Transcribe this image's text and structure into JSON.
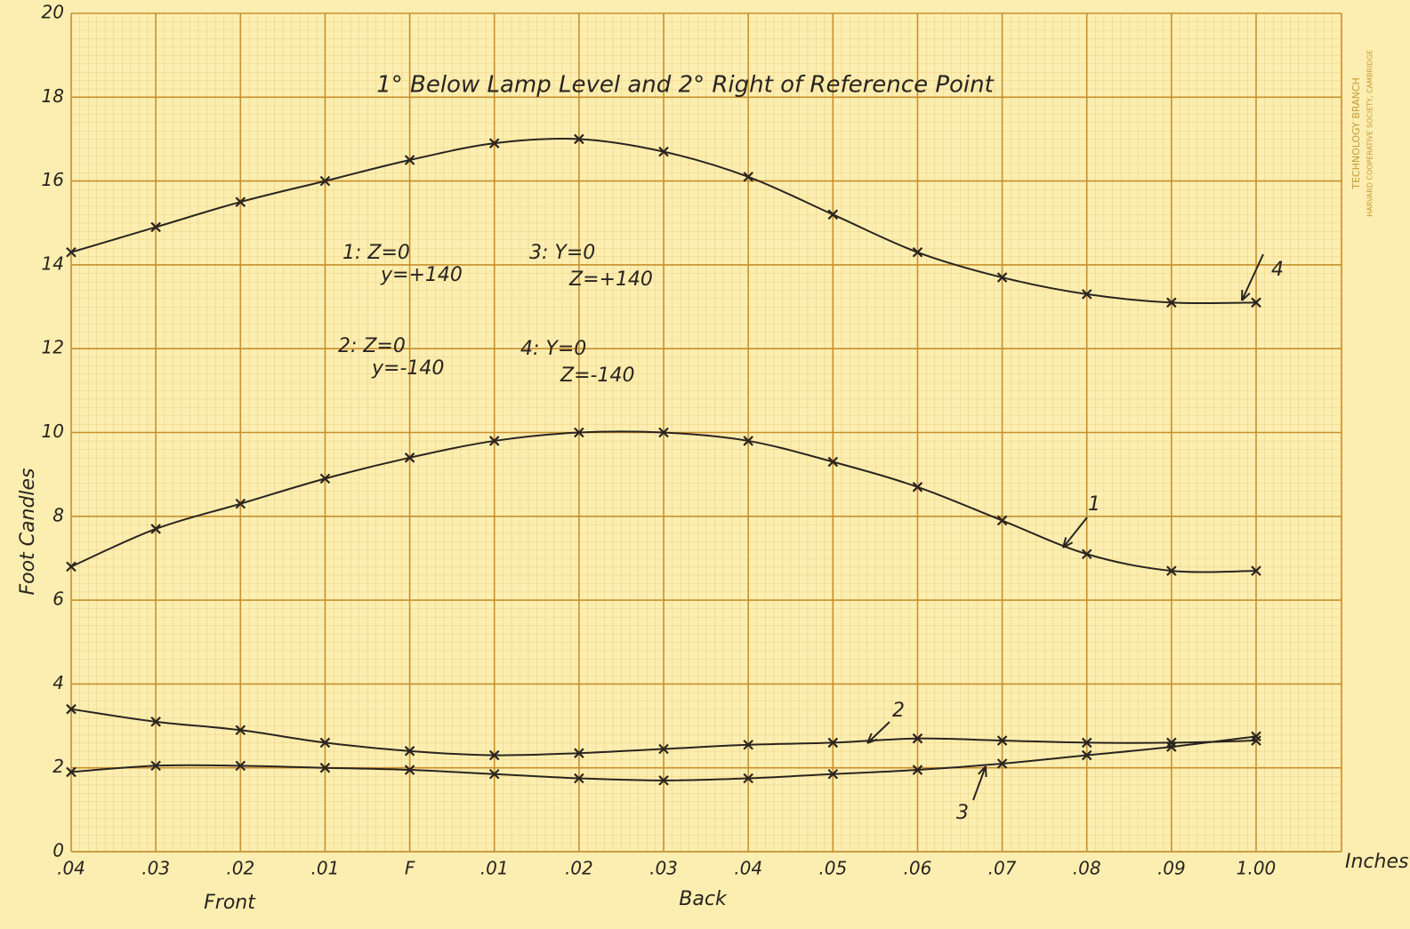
{
  "chart_data": {
    "type": "line",
    "title": "1° Below Lamp Level and 2° Right of Reference Point",
    "y_label": "Foot Candles",
    "x_labels": [
      "Front",
      "Back",
      "Inches"
    ],
    "categories": [
      ".04",
      ".03",
      ".02",
      ".01",
      "F",
      ".01",
      ".02",
      ".03",
      ".04",
      ".05",
      ".06",
      ".07",
      ".08",
      ".09",
      "1.00"
    ],
    "series": [
      {
        "name": "1",
        "color": "#2a2420",
        "values": [
          6.8,
          7.7,
          8.3,
          8.9,
          9.4,
          9.8,
          10.0,
          10.0,
          9.8,
          9.3,
          8.7,
          7.9,
          7.1,
          6.7,
          6.7
        ]
      },
      {
        "name": "2",
        "color": "#2a2420",
        "values": [
          3.4,
          3.1,
          2.9,
          2.6,
          2.4,
          2.3,
          2.35,
          2.45,
          2.55,
          2.6,
          2.7,
          2.65,
          2.6,
          2.6,
          2.65
        ]
      },
      {
        "name": "3",
        "color": "#2a2420",
        "values": [
          1.9,
          2.05,
          2.05,
          2.0,
          1.95,
          1.85,
          1.75,
          1.7,
          1.75,
          1.85,
          1.95,
          2.1,
          2.3,
          2.5,
          2.75
        ]
      },
      {
        "name": "4",
        "color": "#2a2420",
        "values": [
          14.3,
          14.9,
          15.5,
          16.0,
          16.5,
          16.9,
          17.0,
          16.7,
          16.1,
          15.2,
          14.3,
          13.7,
          13.3,
          13.1,
          13.1
        ]
      }
    ],
    "annotations": [
      "1: Z=0",
      "y=+140",
      "2: Z=0",
      "y=-140",
      "3: Y=0",
      "Z=+140",
      "4: Y=0",
      "Z=-140"
    ],
    "stamp": [
      "TECHNOLOGY BRANCH",
      "HARVARD COOPERATIVE SOCIETY, CAMBRIDGE"
    ],
    "ylim": [
      0,
      20
    ],
    "yticks": [
      0,
      2,
      4,
      6,
      8,
      10,
      12,
      14,
      16,
      18,
      20
    ],
    "grid": true
  }
}
